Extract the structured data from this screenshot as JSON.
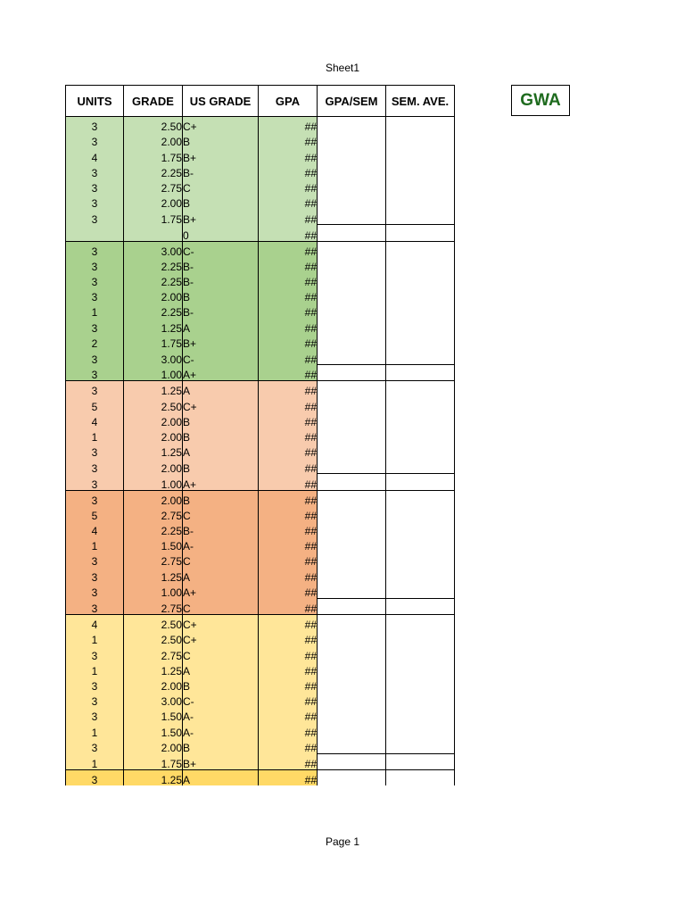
{
  "sheet_title": "Sheet1",
  "page_footer": "Page 1",
  "gwa_label": "GWA",
  "headers": [
    "UNITS",
    "GRADE",
    "US GRADE",
    "GPA",
    "GPA/SEM",
    "SEM. AVE."
  ],
  "colors": {
    "green_light": "#c5e0b4",
    "green": "#a9d18e",
    "peach_light": "#f8cbad",
    "peach": "#f4b183",
    "yellow_light": "#ffe699",
    "yellow": "#ffd966",
    "gwa_text": "#1e6b1e"
  },
  "blocks": [
    {
      "color": "green_light",
      "rows": [
        {
          "units": "3",
          "grade": "2.50",
          "us": "C+",
          "gpa": "##"
        },
        {
          "units": "3",
          "grade": "2.00",
          "us": "B",
          "gpa": "##"
        },
        {
          "units": "4",
          "grade": "1.75",
          "us": "B+",
          "gpa": "##"
        },
        {
          "units": "3",
          "grade": "2.25",
          "us": "B-",
          "gpa": "##"
        },
        {
          "units": "3",
          "grade": "2.75",
          "us": "C",
          "gpa": "##"
        },
        {
          "units": "3",
          "grade": "2.00",
          "us": "B",
          "gpa": "##"
        },
        {
          "units": "3",
          "grade": "1.75",
          "us": "B+",
          "gpa": "##"
        },
        {
          "units": "",
          "grade": "",
          "us": "0",
          "gpa": "##",
          "sep": true
        }
      ]
    },
    {
      "color": "green",
      "rows": [
        {
          "units": "3",
          "grade": "3.00",
          "us": "C-",
          "gpa": "##"
        },
        {
          "units": "3",
          "grade": "2.25",
          "us": "B-",
          "gpa": "##"
        },
        {
          "units": "3",
          "grade": "2.25",
          "us": "B-",
          "gpa": "##"
        },
        {
          "units": "3",
          "grade": "2.00",
          "us": "B",
          "gpa": "##"
        },
        {
          "units": "1",
          "grade": "2.25",
          "us": "B-",
          "gpa": "##"
        },
        {
          "units": "3",
          "grade": "1.25",
          "us": "A",
          "gpa": "##"
        },
        {
          "units": "2",
          "grade": "1.75",
          "us": "B+",
          "gpa": "##"
        },
        {
          "units": "3",
          "grade": "3.00",
          "us": "C-",
          "gpa": "##"
        },
        {
          "units": "3",
          "grade": "1.00",
          "us": "A+",
          "gpa": "##",
          "sep": true
        }
      ]
    },
    {
      "color": "peach_light",
      "rows": [
        {
          "units": "3",
          "grade": "1.25",
          "us": "A",
          "gpa": "##"
        },
        {
          "units": "5",
          "grade": "2.50",
          "us": "C+",
          "gpa": "##"
        },
        {
          "units": "4",
          "grade": "2.00",
          "us": "B",
          "gpa": "##"
        },
        {
          "units": "1",
          "grade": "2.00",
          "us": "B",
          "gpa": "##"
        },
        {
          "units": "3",
          "grade": "1.25",
          "us": "A",
          "gpa": "##"
        },
        {
          "units": "3",
          "grade": "2.00",
          "us": "B",
          "gpa": "##"
        },
        {
          "units": "3",
          "grade": "1.00",
          "us": "A+",
          "gpa": "##",
          "sep": true
        }
      ]
    },
    {
      "color": "peach",
      "rows": [
        {
          "units": "3",
          "grade": "2.00",
          "us": "B",
          "gpa": "##"
        },
        {
          "units": "5",
          "grade": "2.75",
          "us": "C",
          "gpa": "##"
        },
        {
          "units": "4",
          "grade": "2.25",
          "us": "B-",
          "gpa": "##"
        },
        {
          "units": "1",
          "grade": "1.50",
          "us": "A-",
          "gpa": "##"
        },
        {
          "units": "3",
          "grade": "2.75",
          "us": "C",
          "gpa": "##"
        },
        {
          "units": "3",
          "grade": "1.25",
          "us": "A",
          "gpa": "##"
        },
        {
          "units": "3",
          "grade": "1.00",
          "us": "A+",
          "gpa": "##"
        },
        {
          "units": "3",
          "grade": "2.75",
          "us": "C",
          "gpa": "##",
          "sep": true
        }
      ]
    },
    {
      "color": "yellow_light",
      "rows": [
        {
          "units": "4",
          "grade": "2.50",
          "us": "C+",
          "gpa": "##"
        },
        {
          "units": "1",
          "grade": "2.50",
          "us": "C+",
          "gpa": "##"
        },
        {
          "units": "3",
          "grade": "2.75",
          "us": "C",
          "gpa": "##"
        },
        {
          "units": "1",
          "grade": "1.25",
          "us": "A",
          "gpa": "##"
        },
        {
          "units": "3",
          "grade": "2.00",
          "us": "B",
          "gpa": "##"
        },
        {
          "units": "3",
          "grade": "3.00",
          "us": "C-",
          "gpa": "##"
        },
        {
          "units": "3",
          "grade": "1.50",
          "us": "A-",
          "gpa": "##"
        },
        {
          "units": "1",
          "grade": "1.50",
          "us": "A-",
          "gpa": "##"
        },
        {
          "units": "3",
          "grade": "2.00",
          "us": "B",
          "gpa": "##"
        },
        {
          "units": "1",
          "grade": "1.75",
          "us": "B+",
          "gpa": "##",
          "sep": true
        }
      ]
    },
    {
      "color": "yellow",
      "rows": [
        {
          "units": "3",
          "grade": "1.25",
          "us": "A",
          "gpa": "##"
        }
      ]
    }
  ]
}
